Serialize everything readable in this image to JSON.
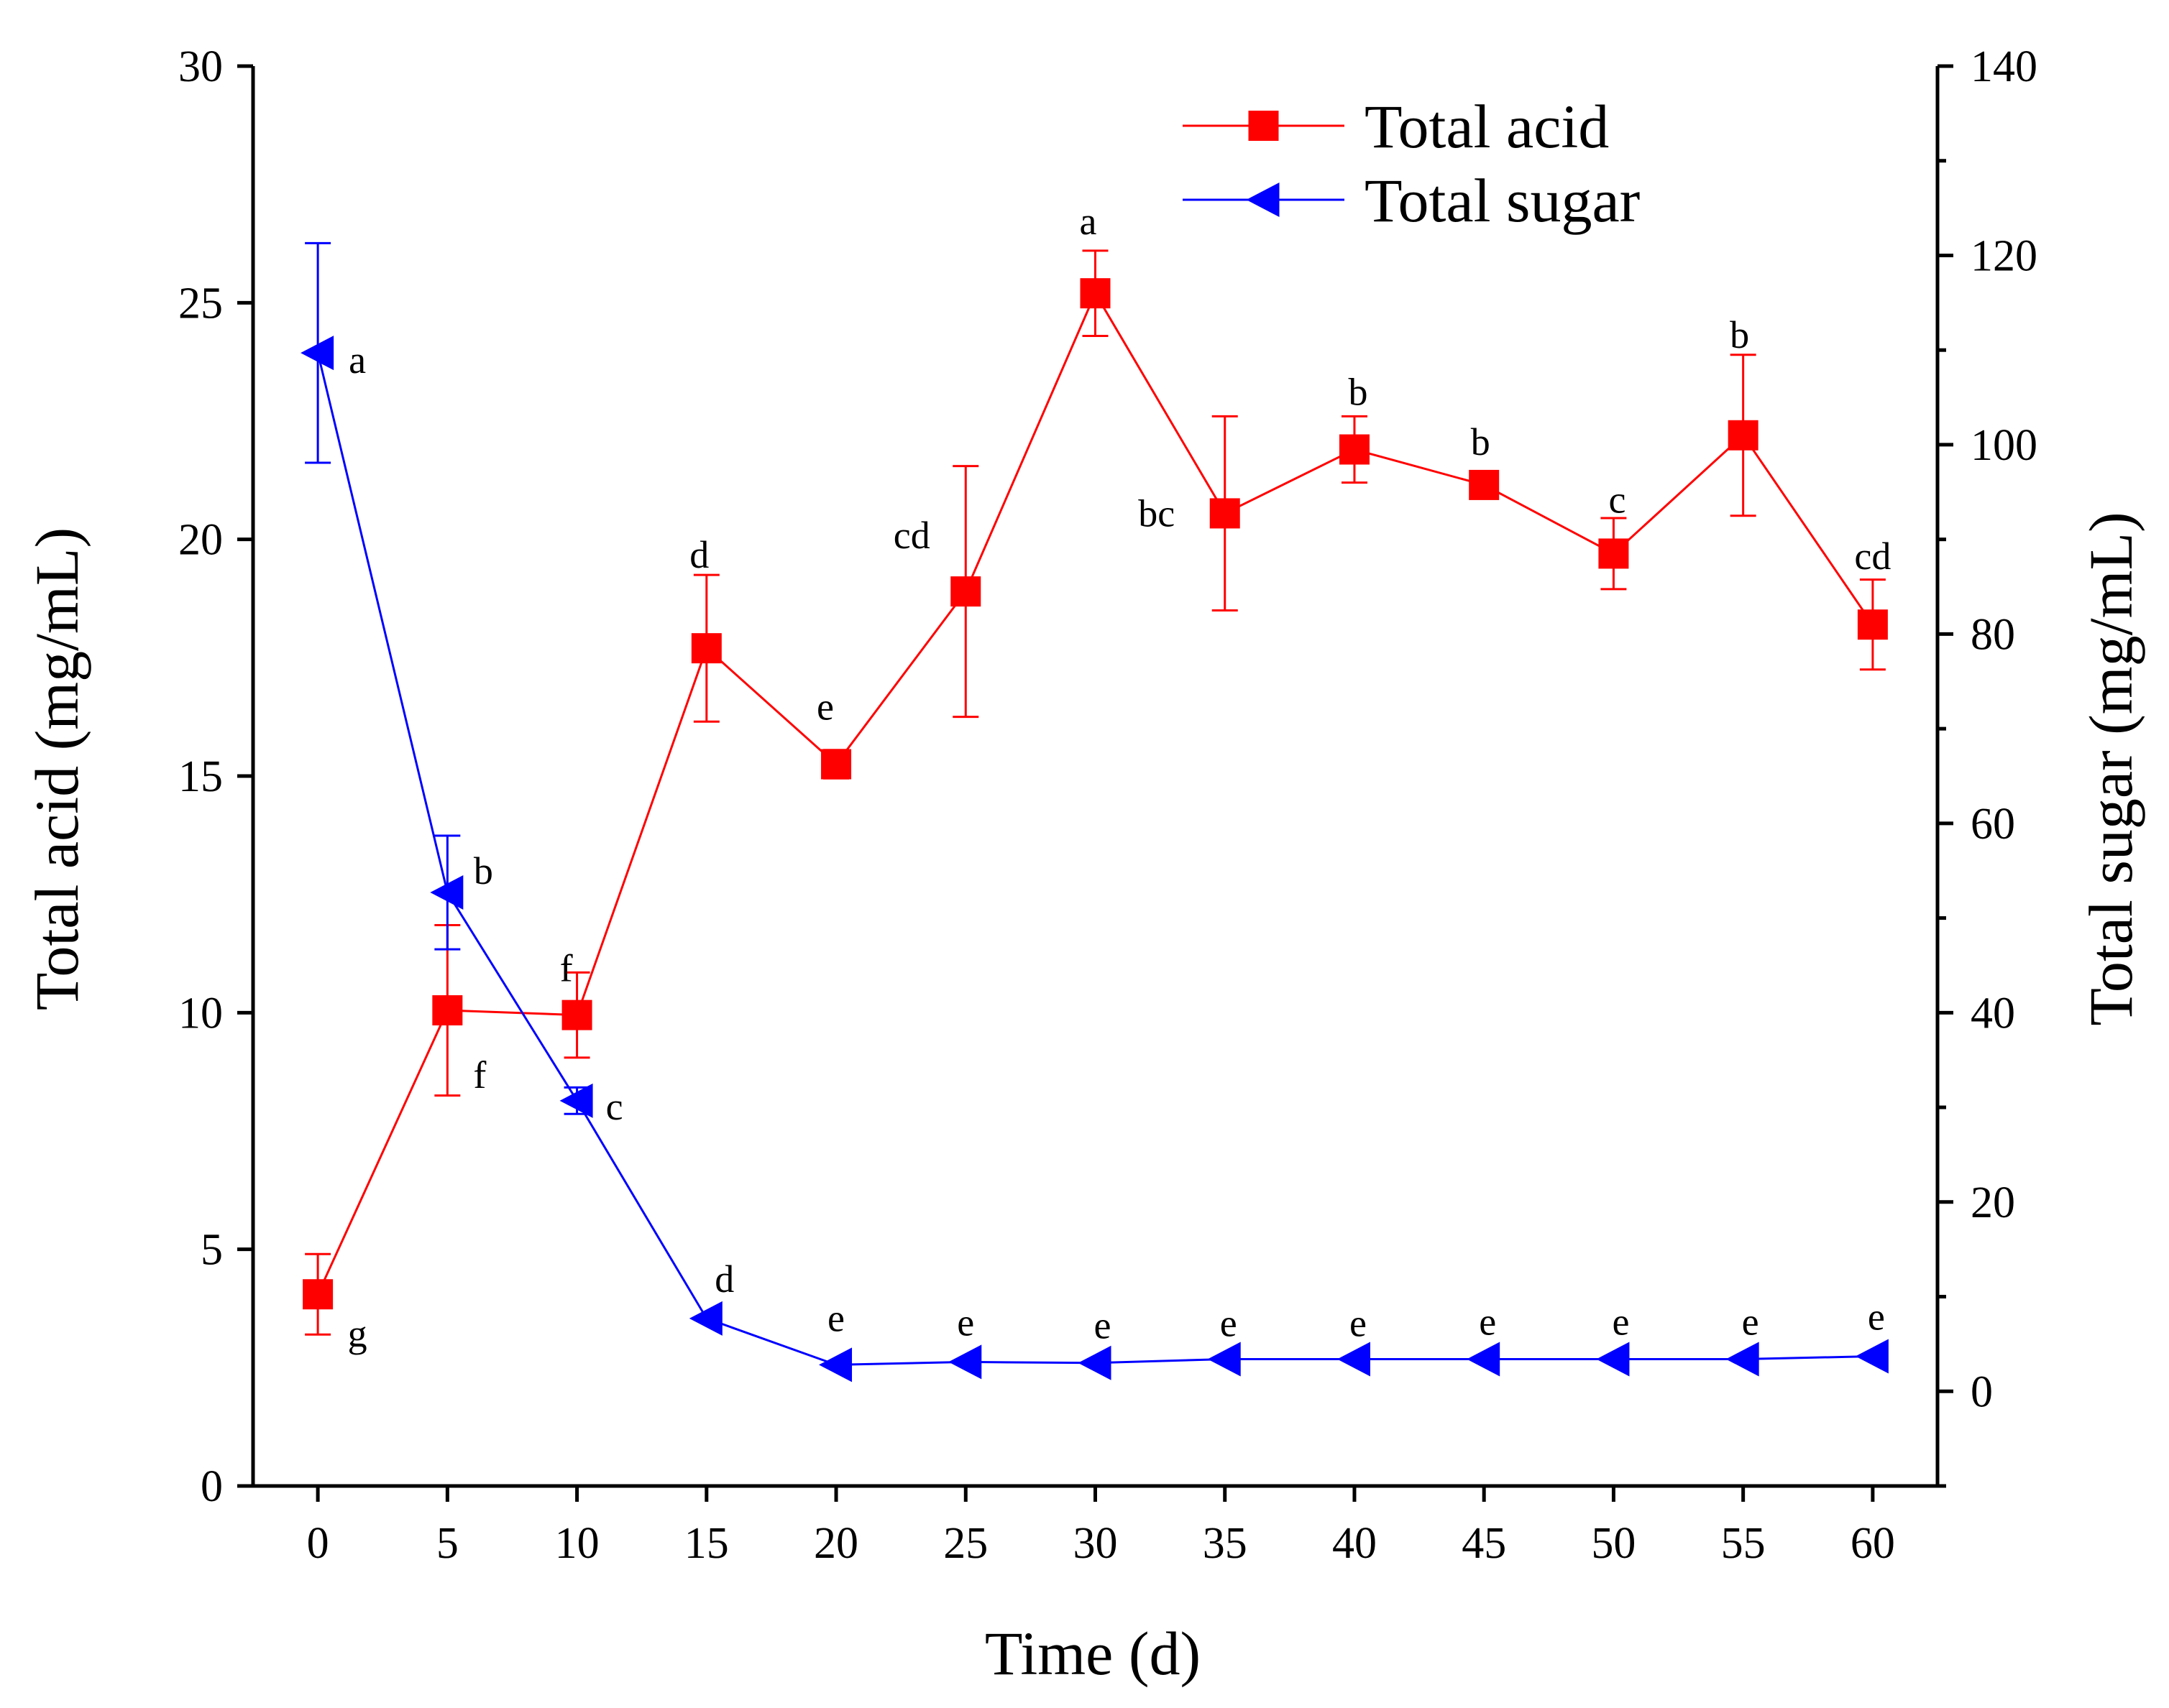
{
  "chart_data": {
    "type": "line",
    "title": "",
    "xlabel": "Time (d)",
    "ylabel": "Total acid (mg/mL)",
    "y2label": "Total sugar (mg/mL)",
    "xlim": [
      -2.5,
      62.5
    ],
    "ylim": [
      0,
      30
    ],
    "y2lim": [
      -10,
      140
    ],
    "x_ticks": [
      0,
      5,
      10,
      15,
      20,
      25,
      30,
      35,
      40,
      45,
      50,
      55,
      60
    ],
    "x_tick_labels": [
      "0",
      "5",
      "10",
      "15",
      "20",
      "25",
      "30",
      "35",
      "40",
      "45",
      "50",
      "55",
      "60"
    ],
    "y_ticks": [
      0,
      5,
      10,
      15,
      20,
      25,
      30
    ],
    "y_tick_labels": [
      "0",
      "5",
      "10",
      "15",
      "20",
      "25",
      "30"
    ],
    "y2_ticks": [
      0,
      20,
      40,
      60,
      80,
      100,
      120,
      140
    ],
    "y2_tick_labels": [
      "0",
      "20",
      "40",
      "60",
      "80",
      "100",
      "120",
      "140"
    ],
    "legend_position": "top-right",
    "x": [
      0,
      5,
      10,
      15,
      20,
      25,
      30,
      35,
      40,
      45,
      50,
      55,
      60
    ],
    "series": [
      {
        "name": "Total acid",
        "axis": "left",
        "color": "#ff0000",
        "marker": "square",
        "values": [
          4.05,
          10.05,
          9.95,
          17.7,
          15.25,
          18.9,
          25.2,
          20.55,
          21.9,
          21.15,
          19.7,
          22.2,
          18.2
        ],
        "errors": [
          0.85,
          1.8,
          0.9,
          1.55,
          0.3,
          2.65,
          0.9,
          2.05,
          0.7,
          0.0,
          0.75,
          1.7,
          0.95
        ],
        "labels": [
          "g",
          "f",
          "f",
          "d",
          "e",
          "cd",
          "a",
          "bc",
          "b",
          "b",
          "c",
          "b",
          "cd"
        ]
      },
      {
        "name": "Total sugar",
        "axis": "right",
        "color": "#0000ff",
        "marker": "triangle-left",
        "values": [
          109.7,
          52.7,
          30.7,
          7.7,
          2.8,
          3.1,
          3.0,
          3.4,
          3.4,
          3.4,
          3.4,
          3.4,
          3.7
        ],
        "errors": [
          11.6,
          6.0,
          1.4,
          0.0,
          0.0,
          0.0,
          0.0,
          0.0,
          0.0,
          0.0,
          0.0,
          0.0,
          0.0
        ],
        "labels": [
          "a",
          "b",
          "c",
          "d",
          "e",
          "e",
          "e",
          "e",
          "e",
          "e",
          "e",
          "e",
          "e"
        ]
      }
    ]
  }
}
